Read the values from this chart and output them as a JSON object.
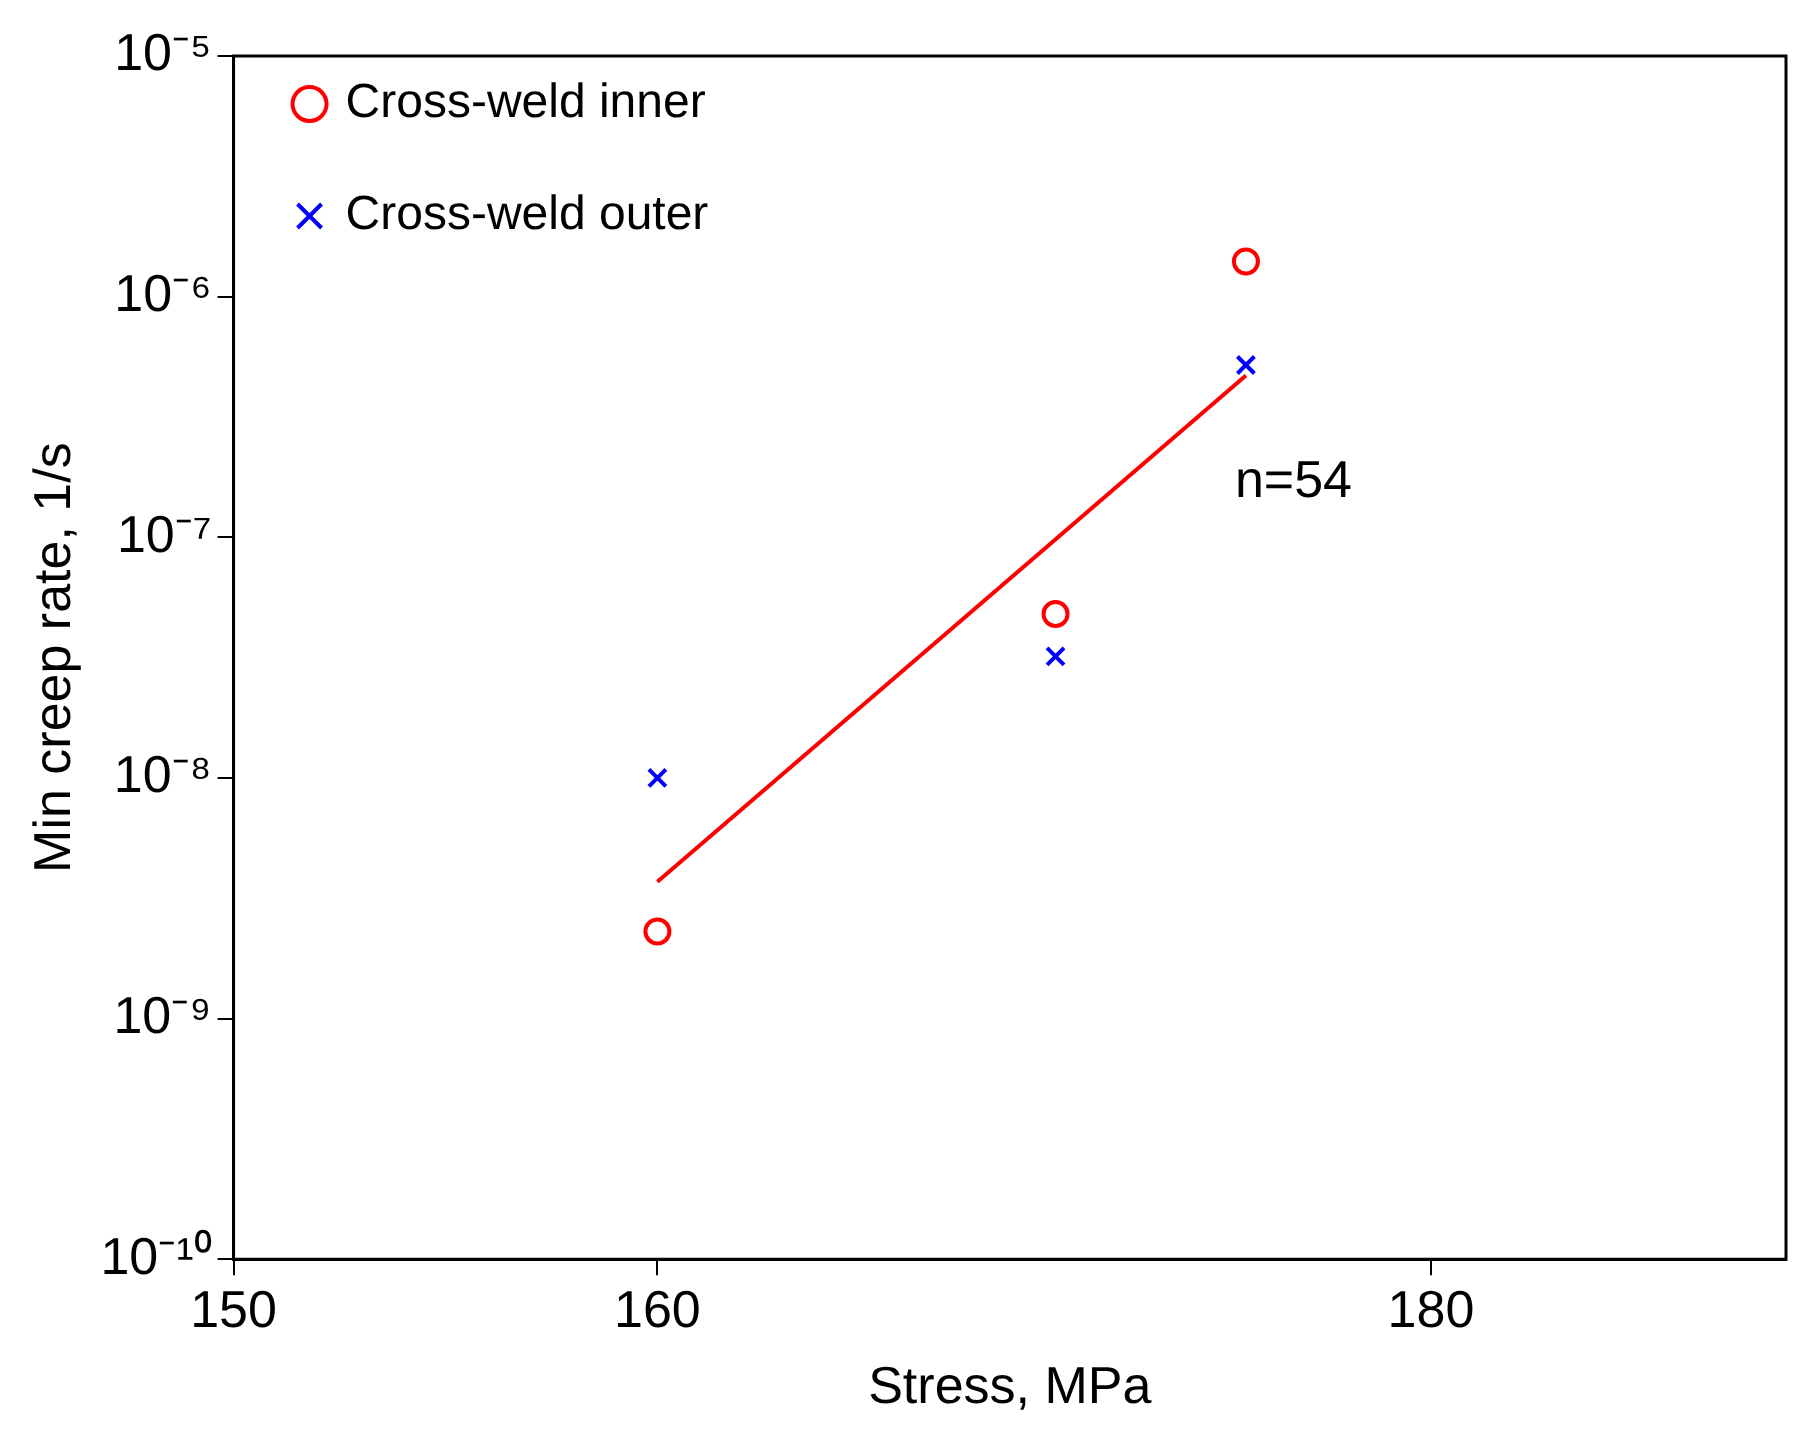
{
  "chart_data": {
    "type": "scatter",
    "xlabel": "Stress, MPa",
    "ylabel": "Min creep rate, 1/s",
    "log": "xy",
    "xlim": [
      150,
      190
    ],
    "xticks": [
      150,
      160,
      180
    ],
    "ylim": [
      1e-10,
      1e-05
    ],
    "yticks": [
      {
        "value": 1e-10,
        "label": "10⁻¹⁰"
      },
      {
        "value": 1e-09,
        "label": "10⁻⁹"
      },
      {
        "value": 1e-08,
        "label": "10⁻⁸"
      },
      {
        "value": 1e-07,
        "label": "10⁻⁷"
      },
      {
        "value": 1e-06,
        "label": "10⁻⁶"
      },
      {
        "value": 1e-05,
        "label": "10⁻⁵"
      }
    ],
    "grid": false,
    "legend": "top left",
    "annotations": [
      "n=54"
    ],
    "series": [
      {
        "name": "Cross-weld inner",
        "color": "#ff0000",
        "marker": "circle",
        "x": [
          160,
          170,
          175
        ],
        "values": [
          2.3e-09,
          4.8e-08,
          1.4e-06
        ]
      },
      {
        "name": "Cross-weld outer",
        "color": "#0000ff",
        "marker": "cross",
        "x": [
          160,
          170,
          175
        ],
        "values": [
          1e-08,
          3.2e-08,
          5.2e-07
        ]
      },
      {
        "type": "line",
        "color": "#ff0000",
        "marker": "none",
        "x": [
          160,
          175
        ],
        "values": [
          3.7e-09,
          4.7e-07
        ]
      }
    ]
  }
}
